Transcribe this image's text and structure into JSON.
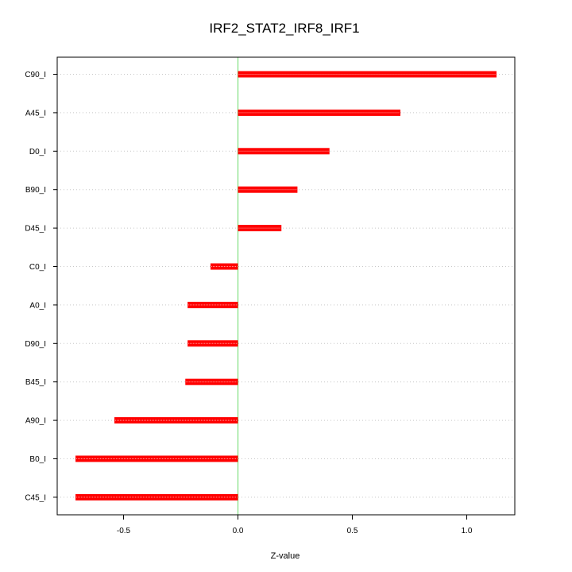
{
  "chart_data": {
    "type": "bar",
    "orientation": "horizontal",
    "title": "IRF2_STAT2_IRF8_IRF1",
    "xlabel": "Z-value",
    "ylabel": "",
    "xlim": [
      -0.79,
      1.21
    ],
    "xticks": [
      -0.5,
      0.0,
      0.5,
      1.0
    ],
    "xtick_labels": [
      "-0.5",
      "0.0",
      "0.5",
      "1.0"
    ],
    "categories": [
      "C90_I",
      "A45_I",
      "D0_I",
      "B90_I",
      "D45_I",
      "C0_I",
      "A0_I",
      "D90_I",
      "B45_I",
      "A90_I",
      "B0_I",
      "C45_I"
    ],
    "values": [
      1.13,
      0.71,
      0.4,
      0.26,
      0.19,
      -0.12,
      -0.22,
      -0.22,
      -0.23,
      -0.54,
      -0.71,
      -0.71
    ],
    "grid": "horizontal dotted",
    "reference_line": 0,
    "colors": {
      "bar": "#ff0000",
      "bar_highlight": "#ff9999",
      "zero_line": "#7fe07f",
      "grid": "#c8c8c8",
      "frame": "#000000"
    }
  }
}
